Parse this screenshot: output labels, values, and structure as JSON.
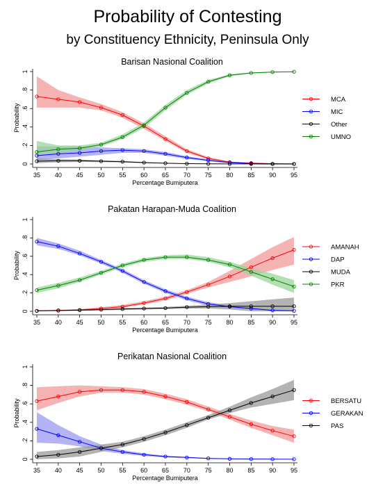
{
  "figure": {
    "title": "Probability of Contesting",
    "subtitle": "by Constituency Ethnicity, Peninsula Only"
  },
  "chart_data": [
    {
      "type": "line",
      "title": "Barisan Nasional Coalition",
      "xlabel": "Percentage Bumiputera",
      "ylabel": "Probability",
      "x": [
        35,
        40,
        45,
        50,
        55,
        60,
        65,
        70,
        75,
        80,
        85,
        90,
        95
      ],
      "xticks": [
        "35",
        "40",
        "45",
        "50",
        "55",
        "60",
        "65",
        "70",
        "75",
        "80",
        "85",
        "90",
        "95"
      ],
      "yticks": [
        "0",
        ".2",
        ".4",
        ".6",
        ".8",
        "1"
      ],
      "ylim": [
        0,
        1
      ],
      "grid": false,
      "legend_position": "right",
      "series": [
        {
          "name": "MCA",
          "color": "#ff0000",
          "band": "#f19a9a",
          "values": [
            0.73,
            0.7,
            0.67,
            0.61,
            0.53,
            0.41,
            0.27,
            0.14,
            0.06,
            0.02,
            0.01,
            0.003,
            0.001
          ],
          "lower": [
            0.61,
            0.61,
            0.61,
            0.58,
            0.5,
            0.38,
            0.25,
            0.12,
            0.05,
            0.015,
            0.005,
            0.002,
            0.0005
          ],
          "upper": [
            0.95,
            0.8,
            0.72,
            0.65,
            0.56,
            0.44,
            0.3,
            0.16,
            0.075,
            0.025,
            0.012,
            0.005,
            0.002
          ]
        },
        {
          "name": "MIC",
          "color": "#0000ff",
          "band": "#9a9af1",
          "values": [
            0.09,
            0.11,
            0.12,
            0.14,
            0.15,
            0.14,
            0.11,
            0.07,
            0.04,
            0.015,
            0.006,
            0.002,
            0.001
          ],
          "lower": [
            0.04,
            0.06,
            0.08,
            0.1,
            0.12,
            0.12,
            0.09,
            0.055,
            0.03,
            0.01,
            0.004,
            0.001,
            0.0005
          ],
          "upper": [
            0.19,
            0.19,
            0.19,
            0.18,
            0.17,
            0.16,
            0.13,
            0.085,
            0.05,
            0.02,
            0.008,
            0.003,
            0.002
          ]
        },
        {
          "name": "Other",
          "color": "#000000",
          "band": "#9a9a9a",
          "values": [
            0.03,
            0.035,
            0.035,
            0.03,
            0.025,
            0.015,
            0.008,
            0.004,
            0.002,
            0.001,
            0.0005,
            0.0002,
            0.0001
          ],
          "lower": [
            0.01,
            0.018,
            0.022,
            0.02,
            0.017,
            0.01,
            0.005,
            0.002,
            0.001,
            0.0005,
            0.0002,
            0.0001,
            0.0
          ],
          "upper": [
            0.06,
            0.05,
            0.048,
            0.04,
            0.033,
            0.02,
            0.012,
            0.006,
            0.003,
            0.0015,
            0.001,
            0.0004,
            0.0002
          ]
        },
        {
          "name": "UMNO",
          "color": "#008000",
          "band": "#9ad69a",
          "values": [
            0.13,
            0.16,
            0.17,
            0.21,
            0.29,
            0.42,
            0.61,
            0.77,
            0.89,
            0.96,
            0.985,
            0.995,
            0.998
          ],
          "lower": [
            0.1,
            0.12,
            0.15,
            0.19,
            0.27,
            0.39,
            0.58,
            0.75,
            0.87,
            0.95,
            0.98,
            0.99,
            0.995
          ],
          "upper": [
            0.25,
            0.2,
            0.2,
            0.23,
            0.32,
            0.45,
            0.64,
            0.8,
            0.91,
            0.97,
            0.99,
            0.998,
            1.0
          ]
        }
      ]
    },
    {
      "type": "line",
      "title": "Pakatan Harapan-Muda Coalition",
      "xlabel": "Percentage Bumiputera",
      "ylabel": "Probability",
      "x": [
        35,
        40,
        45,
        50,
        55,
        60,
        65,
        70,
        75,
        80,
        85,
        90,
        95
      ],
      "xticks": [
        "35",
        "40",
        "45",
        "50",
        "55",
        "60",
        "65",
        "70",
        "75",
        "80",
        "85",
        "90",
        "95"
      ],
      "yticks": [
        "0",
        ".2",
        ".4",
        ".6",
        ".8",
        "1"
      ],
      "ylim": [
        0,
        1
      ],
      "grid": false,
      "legend_position": "right",
      "series": [
        {
          "name": "AMANAH",
          "color": "#ff0000",
          "band": "#f19a9a",
          "values": [
            0.005,
            0.01,
            0.015,
            0.03,
            0.05,
            0.09,
            0.14,
            0.21,
            0.29,
            0.38,
            0.48,
            0.58,
            0.67
          ],
          "lower": [
            0.0,
            0.004,
            0.008,
            0.02,
            0.04,
            0.075,
            0.12,
            0.19,
            0.26,
            0.32,
            0.38,
            0.45,
            0.51
          ],
          "upper": [
            0.01,
            0.015,
            0.025,
            0.045,
            0.07,
            0.11,
            0.16,
            0.23,
            0.32,
            0.44,
            0.57,
            0.7,
            0.81
          ]
        },
        {
          "name": "DAP",
          "color": "#0000ff",
          "band": "#9a9af1",
          "values": [
            0.76,
            0.71,
            0.63,
            0.54,
            0.44,
            0.32,
            0.22,
            0.14,
            0.08,
            0.05,
            0.03,
            0.01,
            0.005
          ],
          "lower": [
            0.72,
            0.68,
            0.61,
            0.52,
            0.42,
            0.3,
            0.2,
            0.12,
            0.06,
            0.035,
            0.02,
            0.005,
            0.001
          ],
          "upper": [
            0.8,
            0.74,
            0.66,
            0.56,
            0.46,
            0.34,
            0.24,
            0.16,
            0.1,
            0.065,
            0.04,
            0.02,
            0.01
          ]
        },
        {
          "name": "MUDA",
          "color": "#000000",
          "band": "#9a9a9a",
          "values": [
            0.005,
            0.008,
            0.012,
            0.018,
            0.025,
            0.03,
            0.035,
            0.045,
            0.05,
            0.055,
            0.055,
            0.055,
            0.055
          ],
          "lower": [
            0.001,
            0.003,
            0.006,
            0.01,
            0.015,
            0.02,
            0.025,
            0.03,
            0.03,
            0.02,
            0.0,
            0.0,
            0.0
          ],
          "upper": [
            0.01,
            0.014,
            0.018,
            0.025,
            0.035,
            0.04,
            0.048,
            0.06,
            0.075,
            0.09,
            0.11,
            0.13,
            0.15
          ]
        },
        {
          "name": "PKR",
          "color": "#008000",
          "band": "#9ad69a",
          "values": [
            0.23,
            0.28,
            0.34,
            0.42,
            0.5,
            0.56,
            0.59,
            0.59,
            0.56,
            0.51,
            0.43,
            0.35,
            0.27
          ],
          "lower": [
            0.2,
            0.25,
            0.32,
            0.4,
            0.48,
            0.54,
            0.57,
            0.57,
            0.54,
            0.48,
            0.39,
            0.29,
            0.2
          ],
          "upper": [
            0.26,
            0.31,
            0.37,
            0.44,
            0.52,
            0.58,
            0.61,
            0.62,
            0.59,
            0.54,
            0.47,
            0.41,
            0.34
          ]
        }
      ]
    },
    {
      "type": "line",
      "title": "Perikatan Nasional Coalition",
      "xlabel": "Percentage Bumiputera",
      "ylabel": "Probability",
      "x": [
        35,
        40,
        45,
        50,
        55,
        60,
        65,
        70,
        75,
        80,
        85,
        90,
        95
      ],
      "xticks": [
        "35",
        "40",
        "45",
        "50",
        "55",
        "60",
        "65",
        "70",
        "75",
        "80",
        "85",
        "90",
        "95"
      ],
      "yticks": [
        "0",
        ".2",
        ".4",
        ".6",
        ".8",
        "1"
      ],
      "ylim": [
        0,
        1
      ],
      "grid": false,
      "legend_position": "right",
      "series": [
        {
          "name": "BERSATU",
          "color": "#ff0000",
          "band": "#f19a9a",
          "values": [
            0.63,
            0.68,
            0.73,
            0.75,
            0.75,
            0.73,
            0.68,
            0.62,
            0.54,
            0.46,
            0.38,
            0.31,
            0.25
          ],
          "lower": [
            0.53,
            0.61,
            0.68,
            0.72,
            0.72,
            0.7,
            0.65,
            0.59,
            0.52,
            0.43,
            0.34,
            0.26,
            0.18
          ],
          "upper": [
            0.78,
            0.79,
            0.8,
            0.79,
            0.78,
            0.76,
            0.71,
            0.65,
            0.57,
            0.49,
            0.42,
            0.36,
            0.32
          ]
        },
        {
          "name": "GERAKAN",
          "color": "#0000ff",
          "band": "#9a9af1",
          "values": [
            0.33,
            0.26,
            0.19,
            0.12,
            0.08,
            0.05,
            0.03,
            0.02,
            0.01,
            0.005,
            0.003,
            0.002,
            0.001
          ],
          "lower": [
            0.18,
            0.17,
            0.14,
            0.09,
            0.06,
            0.035,
            0.02,
            0.012,
            0.006,
            0.003,
            0.001,
            0.0005,
            0.0
          ],
          "upper": [
            0.51,
            0.37,
            0.25,
            0.16,
            0.1,
            0.065,
            0.04,
            0.025,
            0.015,
            0.008,
            0.005,
            0.003,
            0.002
          ]
        },
        {
          "name": "PAS",
          "color": "#000000",
          "band": "#9a9a9a",
          "values": [
            0.03,
            0.05,
            0.08,
            0.12,
            0.16,
            0.22,
            0.29,
            0.37,
            0.45,
            0.53,
            0.61,
            0.68,
            0.75
          ],
          "lower": [
            0.0,
            0.01,
            0.03,
            0.08,
            0.13,
            0.19,
            0.26,
            0.34,
            0.43,
            0.5,
            0.56,
            0.6,
            0.64
          ],
          "upper": [
            0.08,
            0.1,
            0.13,
            0.16,
            0.19,
            0.25,
            0.32,
            0.4,
            0.48,
            0.57,
            0.67,
            0.76,
            0.86
          ]
        }
      ]
    }
  ]
}
